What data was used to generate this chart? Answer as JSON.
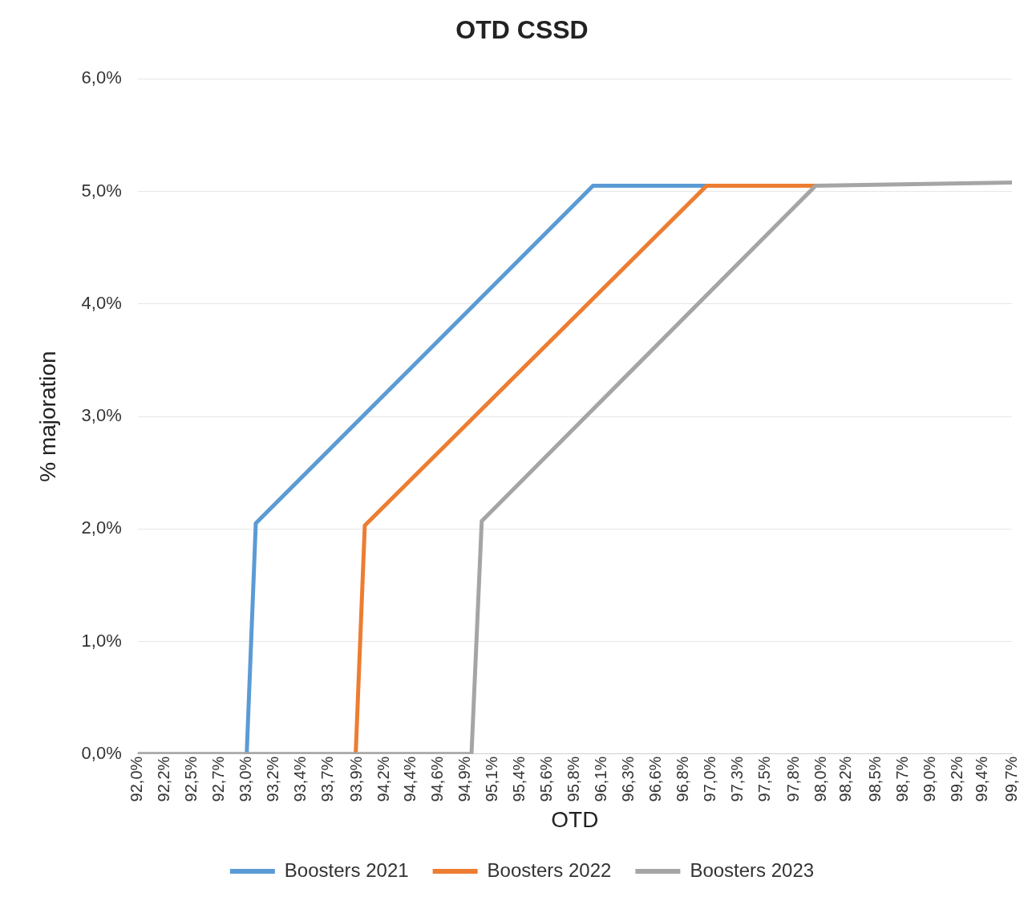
{
  "chart_data": {
    "type": "line",
    "title": "OTD CSSD",
    "xlabel": "OTD",
    "ylabel": "% majoration",
    "xlim": [
      92.0,
      99.7
    ],
    "xticks": [
      {
        "value": 92.0,
        "label": "92,0%"
      },
      {
        "value": 92.24,
        "label": "92,2%"
      },
      {
        "value": 92.48,
        "label": "92,5%"
      },
      {
        "value": 92.72,
        "label": "92,7%"
      },
      {
        "value": 92.96,
        "label": "93,0%"
      },
      {
        "value": 93.2,
        "label": "93,2%"
      },
      {
        "value": 93.44,
        "label": "93,4%"
      },
      {
        "value": 93.68,
        "label": "93,7%"
      },
      {
        "value": 93.93,
        "label": "93,9%"
      },
      {
        "value": 94.17,
        "label": "94,2%"
      },
      {
        "value": 94.41,
        "label": "94,4%"
      },
      {
        "value": 94.65,
        "label": "94,6%"
      },
      {
        "value": 94.89,
        "label": "94,9%"
      },
      {
        "value": 95.13,
        "label": "95,1%"
      },
      {
        "value": 95.37,
        "label": "95,4%"
      },
      {
        "value": 95.61,
        "label": "95,6%"
      },
      {
        "value": 95.85,
        "label": "95,8%"
      },
      {
        "value": 96.09,
        "label": "96,1%"
      },
      {
        "value": 96.33,
        "label": "96,3%"
      },
      {
        "value": 96.57,
        "label": "96,6%"
      },
      {
        "value": 96.81,
        "label": "96,8%"
      },
      {
        "value": 97.05,
        "label": "97,0%"
      },
      {
        "value": 97.29,
        "label": "97,3%"
      },
      {
        "value": 97.53,
        "label": "97,5%"
      },
      {
        "value": 97.78,
        "label": "97,8%"
      },
      {
        "value": 98.02,
        "label": "98,0%"
      },
      {
        "value": 98.24,
        "label": "98,2%"
      },
      {
        "value": 98.5,
        "label": "98,5%"
      },
      {
        "value": 98.74,
        "label": "98,7%"
      },
      {
        "value": 98.98,
        "label": "99,0%"
      },
      {
        "value": 99.22,
        "label": "99,2%"
      },
      {
        "value": 99.44,
        "label": "99,4%"
      },
      {
        "value": 99.7,
        "label": "99,7%"
      }
    ],
    "ylim": [
      0,
      6
    ],
    "yticks": [
      {
        "value": 0,
        "label": "0,0%"
      },
      {
        "value": 1,
        "label": "1,0%"
      },
      {
        "value": 2,
        "label": "2,0%"
      },
      {
        "value": 3,
        "label": "3,0%"
      },
      {
        "value": 4,
        "label": "4,0%"
      },
      {
        "value": 5,
        "label": "5,0%"
      },
      {
        "value": 6,
        "label": "6,0%"
      }
    ],
    "grid": "y",
    "legend": "bottom",
    "marker": "none",
    "line_style": "solid",
    "series": [
      {
        "name": "Boosters 2021",
        "color": "#5b9bd5",
        "x": [
          92.96,
          93.04,
          96.01,
          97.01
        ],
        "values": [
          0,
          2.05,
          5.05,
          5.05
        ]
      },
      {
        "name": "Boosters 2022",
        "color": "#ed7d31",
        "x": [
          93.92,
          94.0,
          97.01,
          97.97
        ],
        "values": [
          0,
          2.03,
          5.05,
          5.05
        ]
      },
      {
        "name": "Boosters 2023",
        "color": "#a5a5a5",
        "x": [
          92.0,
          94.94,
          95.03,
          97.97,
          99.7
        ],
        "values": [
          0,
          0,
          2.07,
          5.05,
          5.08
        ]
      }
    ]
  }
}
